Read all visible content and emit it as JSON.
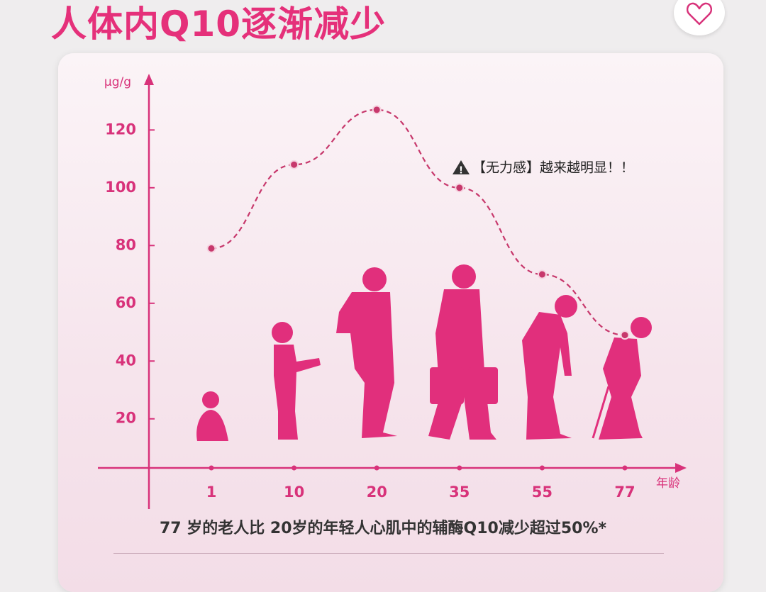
{
  "chart_data": {
    "type": "line",
    "title": "人体内Q10逐渐减少",
    "y_label": "μg/g",
    "x_label": "年龄",
    "categories": [
      "1",
      "10",
      "20",
      "35",
      "55",
      "77"
    ],
    "values": [
      79,
      108,
      127,
      100,
      70,
      49
    ],
    "color": "#c7386c",
    "ylim": [
      3,
      138
    ],
    "yticks": [
      20,
      40,
      60,
      80,
      100,
      120
    ],
    "annotation": "【无力感】越来越明显！！",
    "footnote": "77 岁的老人比 20岁的年轻人心肌中的辅酶Q10减少超过50%*"
  }
}
